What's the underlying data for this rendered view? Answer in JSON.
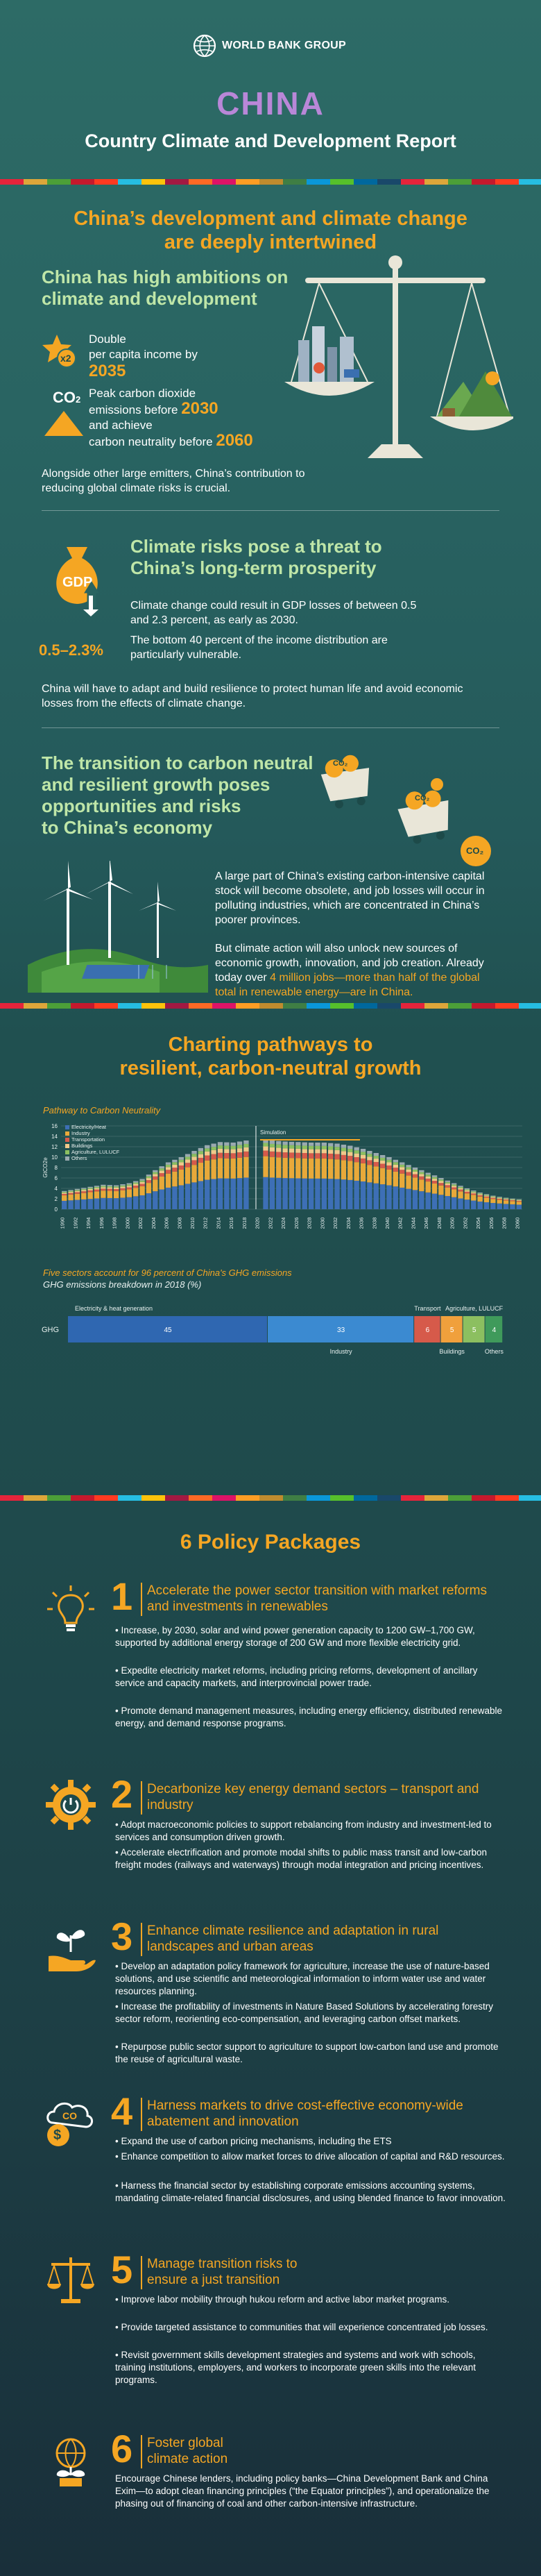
{
  "header": {
    "org": "WORLD BANK GROUP",
    "country": "CHINA",
    "report": "Country Climate and Development Report"
  },
  "intro": {
    "headline_l1": "China’s development and climate change",
    "headline_l2": "are deeply intertwined"
  },
  "ambitions": {
    "title_l1": "China has high ambitions on",
    "title_l2": "climate and development",
    "badge": "x2",
    "item1_l1": "Double",
    "item1_l2": "per capita income by",
    "item1_year": "2035",
    "co2_label": "CO",
    "co2_sub": "2",
    "item2_l1": "Peak carbon dioxide",
    "item2_l2": "emissions before",
    "item2_year1": "2030",
    "item2_l3": "and achieve",
    "item2_l4": "carbon neutrality before",
    "item2_year2": "2060",
    "footer": "Alongside other large emitters, China’s contribution to reducing global climate risks is crucial."
  },
  "risks": {
    "gdp_label": "GDP",
    "gdp_range": "0.5–2.3%",
    "title_l1": "Climate risks pose a threat to",
    "title_l2": "China’s long-term prosperity",
    "p1": "Climate change could result in GDP losses of between 0.5 and 2.3 percent, as early as 2030.",
    "p2": "The bottom 40 percent of the income distribution are particularly vulnerable.",
    "footer": "China will have to adapt and build resilience to protect human life and avoid economic losses from the effects of climate change."
  },
  "transition": {
    "title_l1": "The transition to carbon neutral",
    "title_l2": "and resilient growth poses",
    "title_l3": "opportunities and risks",
    "title_l4": "to China’s economy",
    "cart_labels": [
      "CO₂",
      "CO₂",
      "CO₂"
    ],
    "p1": "A large part of China’s existing carbon-intensive capital stock will become obsolete, and job losses will occur in polluting industries, which are concentrated in China’s poorer provinces.",
    "p2_a": "But climate action will also unlock new sources of economic growth, innovation, and job creation. Already today over ",
    "p2_b": "4 million jobs—more than half of the global total in renewable energy—are in China."
  },
  "pathways": {
    "title_l1": "Charting pathways to",
    "title_l2": "resilient, carbon-neutral growth",
    "chart_title": "Pathway to Carbon Neutrality",
    "simulation_label": "Simulation",
    "sectors_title": "Five sectors account for 96 percent of China's GHG emissions",
    "sectors_subtitle": "GHG emissions breakdown in 2018 (%)"
  },
  "chart_data": [
    {
      "type": "area",
      "title": "Pathway to Carbon Neutrality",
      "ylabel": "GtCO2e",
      "ylim": [
        0,
        16
      ],
      "yticks": [
        "16",
        "14",
        "12",
        "10",
        "8",
        "6",
        "4",
        "2",
        "0"
      ],
      "xticks": [
        "1990",
        "1992",
        "1994",
        "1996",
        "1998",
        "2000",
        "2002",
        "2004",
        "2006",
        "2008",
        "2010",
        "2012",
        "2014",
        "2016",
        "2018",
        "2020",
        "2022",
        "2024",
        "2026",
        "2028",
        "2030",
        "2032",
        "2034",
        "2036",
        "2038",
        "2040",
        "2042",
        "2044",
        "2046",
        "2048",
        "2050",
        "2052",
        "2054",
        "2056",
        "2058",
        "2060"
      ],
      "series": [
        {
          "name": "Electricity/Heat",
          "color": "#3d6fb6"
        },
        {
          "name": "Industry",
          "color": "#e8a93a"
        },
        {
          "name": "Transportation",
          "color": "#d65a4a"
        },
        {
          "name": "Buildings",
          "color": "#f0c98a"
        },
        {
          "name": "Agriculture, LULUCF",
          "color": "#8cbf60"
        },
        {
          "name": "Others",
          "color": "#9aa9b0"
        }
      ],
      "x": [
        1990,
        1992,
        1994,
        1996,
        1998,
        2000,
        2002,
        2004,
        2006,
        2008,
        2010,
        2012,
        2014,
        2016,
        2018,
        2020,
        2022,
        2024,
        2026,
        2028,
        2030,
        2032,
        2034,
        2036,
        2038,
        2040,
        2042,
        2044,
        2046,
        2048,
        2050,
        2052,
        2054,
        2056,
        2058,
        2060
      ],
      "totals": [
        3.5,
        3.9,
        4.3,
        4.7,
        4.6,
        5.0,
        5.8,
        7.5,
        9.0,
        10.0,
        11.2,
        12.3,
        12.9,
        12.8,
        13.2,
        13.6,
        13.2,
        13.0,
        12.9,
        12.8,
        12.8,
        12.6,
        12.2,
        11.6,
        10.8,
        10.0,
        9.0,
        8.0,
        7.0,
        6.0,
        5.0,
        4.0,
        3.2,
        2.6,
        2.2,
        1.9
      ],
      "simulation_start": 2020
    },
    {
      "type": "bar",
      "title": "Five sectors account for 96 percent of China's GHG emissions",
      "subtitle": "GHG emissions breakdown in 2018 (%)",
      "row_label": "GHG",
      "segments": [
        {
          "name": "Electricity & heat generation",
          "value": 45,
          "label": "45",
          "color": "#2f67b1"
        },
        {
          "name": "Industry",
          "value": 33,
          "label": "33",
          "color": "#3b8ad1"
        },
        {
          "name": "Transport",
          "value": 6,
          "label": "6",
          "color": "#d65a4a"
        },
        {
          "name": "Buildings",
          "value": 5,
          "label": "5",
          "color": "#f0a03c"
        },
        {
          "name": "Agriculture, LULUCF",
          "value": 5,
          "label": "5",
          "color": "#8cbf60"
        },
        {
          "name": "Others",
          "value": 4,
          "label": "4",
          "color": "#3f9a5b"
        }
      ]
    }
  ],
  "policy": {
    "title": "6 Policy Packages",
    "packages": [
      {
        "num": "1",
        "title": "Accelerate the power sector transition with market reforms and investments in renewables",
        "items": [
          "• Increase, by 2030, solar and wind power generation capacity to 1200 GW–1,700 GW, supported by additional energy storage of 200 GW and more flexible electricity grid.",
          "• Expedite electricity market reforms, including pricing reforms, development of ancillary service and capacity markets, and interprovincial power trade.",
          "• Promote demand management measures, including energy efficiency, distributed renewable energy, and demand response programs."
        ]
      },
      {
        "num": "2",
        "title": "Decarbonize key energy demand sectors – transport and industry",
        "items": [
          "• Adopt macroeconomic policies to support rebalancing from industry and investment-led to services and consumption driven growth.",
          "• Accelerate electrification and promote modal shifts to public mass transit and low-carbon freight modes (railways and waterways) through modal integration and pricing incentives."
        ]
      },
      {
        "num": "3",
        "title": "Enhance climate resilience and adaptation in rural landscapes and urban areas",
        "items": [
          "• Develop an adaptation policy framework for agriculture, increase the use of nature-based solutions, and use scientific and meteorological information to inform water use and water resources planning.",
          "• Increase the profitability of investments in Nature Based Solutions by accelerating forestry sector reform, reorienting eco-compensation, and leveraging carbon offset markets.",
          "• Repurpose public sector support to agriculture to support low-carbon land use and promote the reuse of agricultural waste."
        ]
      },
      {
        "num": "4",
        "title": "Harness markets to drive cost-effective economy-wide abatement and innovation",
        "items": [
          "• Expand the use of carbon pricing mechanisms, including the ETS",
          "• Enhance competition to allow market forces to drive allocation of capital and R&D resources.",
          "• Harness the financial sector by establishing corporate emissions accounting systems, mandating climate-related financial disclosures, and using blended finance to favor innovation."
        ]
      },
      {
        "num": "5",
        "title": "Manage transition risks to ensure a just transition",
        "items": [
          "• Improve labor mobility through hukou reform and active labor market programs.",
          "• Provide targeted assistance to communities that will experience concentrated job losses.",
          "• Revisit government skills development strategies and systems and work with schools, training institutions, employers, and workers to incorporate green skills into the relevant programs."
        ]
      },
      {
        "num": "6",
        "title": "Foster global climate action",
        "items": [
          "Encourage Chinese lenders, including policy banks—China Development Bank and China Exim—to adopt clean financing principles (“the Equator principles”), and operationalize the phasing out of financing of coal and other carbon-intensive infrastructure."
        ]
      }
    ]
  }
}
